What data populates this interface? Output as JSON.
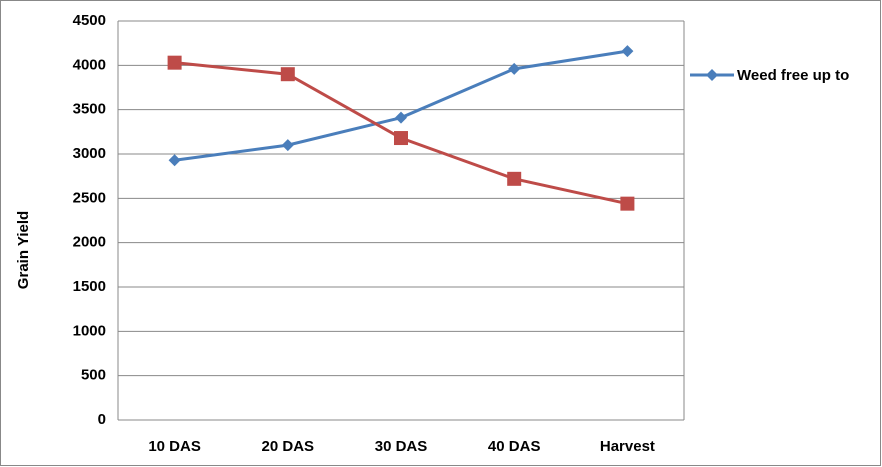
{
  "chart_data": {
    "type": "line",
    "y_label": "Grain Yield",
    "categories": [
      "10 DAS",
      "20 DAS",
      "30 DAS",
      "40 DAS",
      "Harvest"
    ],
    "series": [
      {
        "name": "Weed free up to",
        "color": "#4a7ebb",
        "marker": "diamond",
        "values": [
          2930,
          3100,
          3410,
          3960,
          4160
        ]
      },
      {
        "color": "#be4b48",
        "marker": "square",
        "values": [
          4030,
          3900,
          3180,
          2720,
          2440
        ]
      }
    ],
    "ylim": [
      0,
      4500
    ],
    "yticks": [
      0,
      500,
      1000,
      1500,
      2000,
      2500,
      3000,
      3500,
      4000,
      4500
    ],
    "grid": true,
    "legend": "right"
  }
}
